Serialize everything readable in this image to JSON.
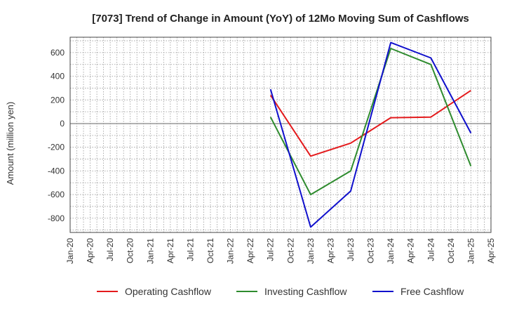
{
  "chart_data": {
    "type": "line",
    "title": "[7073]  Trend of Change in Amount (YoY) of 12Mo Moving Sum of Cashflows",
    "ylabel": "Amount (million yen)",
    "xlabel": "",
    "ylim": [
      -920,
      730
    ],
    "yticks": [
      600,
      400,
      200,
      0,
      -200,
      -400,
      -600,
      -800
    ],
    "x_ticks": [
      "Jan-20",
      "Apr-20",
      "Jul-20",
      "Oct-20",
      "Jan-21",
      "Apr-21",
      "Jul-21",
      "Oct-21",
      "Jan-22",
      "Apr-22",
      "Jul-22",
      "Oct-22",
      "Jan-23",
      "Apr-23",
      "Jul-23",
      "Oct-23",
      "Jan-24",
      "Apr-24",
      "Jul-24",
      "Oct-24",
      "Jan-25",
      "Apr-25"
    ],
    "grid": true,
    "legend_position": "bottom",
    "series": [
      {
        "name": "Operating Cashflow",
        "color": "#e41a1c",
        "x": [
          "Jul-22",
          "Jan-23",
          "Jul-23",
          "Jan-24",
          "Jul-24",
          "Jan-25"
        ],
        "values": [
          240,
          -275,
          -165,
          50,
          55,
          280
        ]
      },
      {
        "name": "Investing Cashflow",
        "color": "#2e8b2e",
        "x": [
          "Jul-22",
          "Jan-23",
          "Jul-23",
          "Jan-24",
          "Jul-24",
          "Jan-25"
        ],
        "values": [
          55,
          -600,
          -400,
          635,
          500,
          -360
        ]
      },
      {
        "name": "Free Cashflow",
        "color": "#1010cc",
        "x": [
          "Jul-22",
          "Jan-23",
          "Jul-23",
          "Jan-24",
          "Jul-24",
          "Jan-25"
        ],
        "values": [
          290,
          -875,
          -570,
          685,
          555,
          -80
        ]
      }
    ]
  }
}
